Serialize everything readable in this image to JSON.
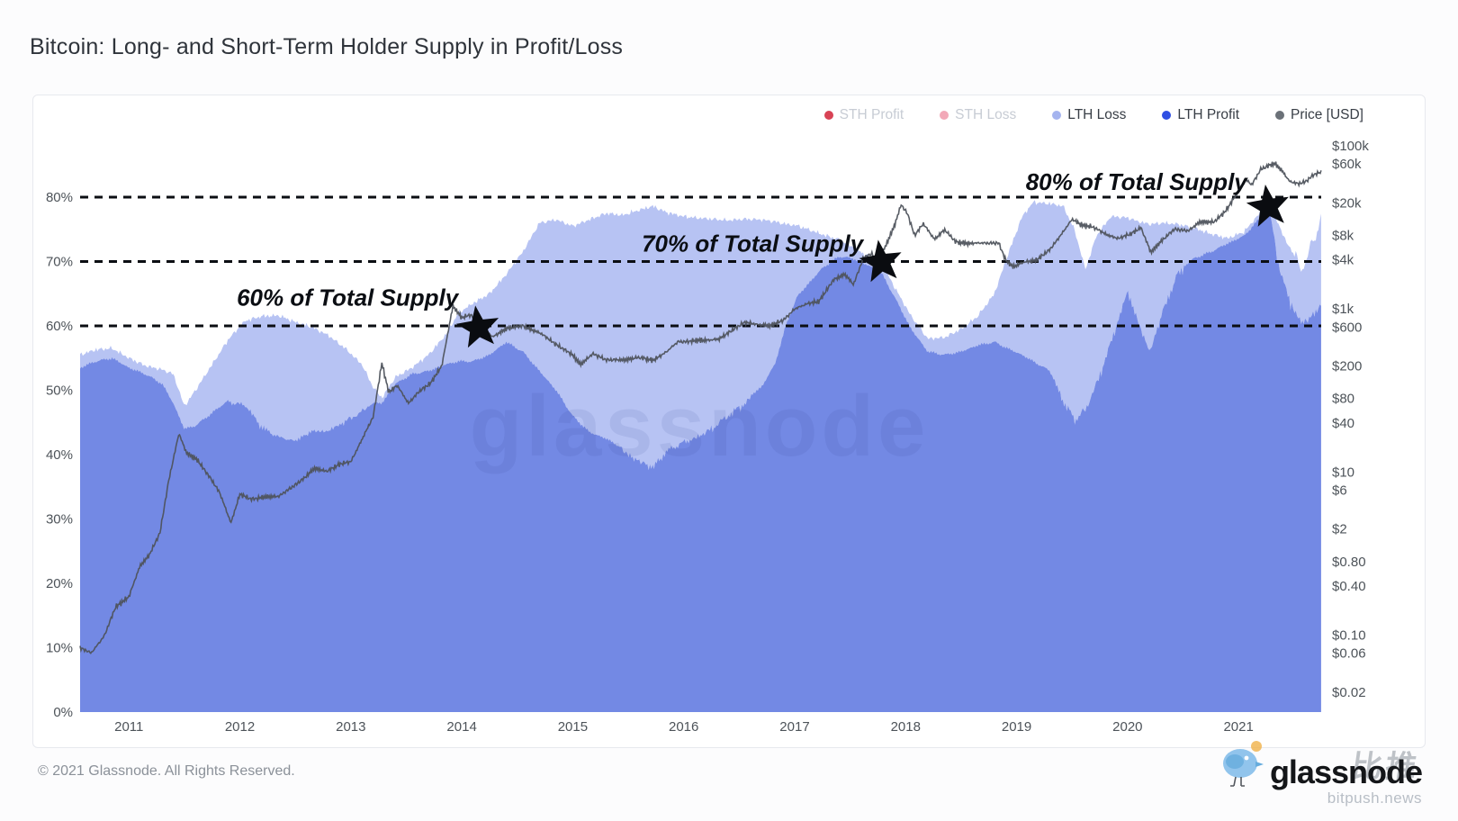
{
  "title": "Bitcoin: Long- and Short-Term Holder Supply in Profit/Loss",
  "legend": [
    {
      "label": "STH Profit",
      "color": "#d84355",
      "faded": true
    },
    {
      "label": "STH Loss",
      "color": "#f2a9b8",
      "faded": true
    },
    {
      "label": "LTH Loss",
      "color": "#a5b4ef",
      "faded": false
    },
    {
      "label": "LTH Profit",
      "color": "#2f4fe3",
      "faded": false
    },
    {
      "label": "Price [USD]",
      "color": "#6b7178",
      "faded": false
    }
  ],
  "watermark": "glassnode",
  "footer": {
    "copyright": "© 2021 Glassnode. All Rights Reserved.",
    "brand": "glassnode",
    "watermark_small": "bitpush.news",
    "watermark_cjk": "比推"
  },
  "colors": {
    "lth_profit_fill": "#7389e4",
    "lth_loss_fill": "#b7c3f3",
    "price_line": "#4e535c",
    "dashed_line": "#0b0e13",
    "axis_text": "#4d5359",
    "annotation_text": "#0b0e13",
    "watermark_fill": "#2a3a8c"
  },
  "axes": {
    "left_ticks_pct": [
      0,
      10,
      20,
      30,
      40,
      50,
      60,
      70,
      80
    ],
    "right_ticks": [
      {
        "label": "$100k",
        "value": 100000
      },
      {
        "label": "$60k",
        "value": 60000
      },
      {
        "label": "$20k",
        "value": 20000
      },
      {
        "label": "$8k",
        "value": 8000
      },
      {
        "label": "$4k",
        "value": 4000
      },
      {
        "label": "$1k",
        "value": 1000
      },
      {
        "label": "$600",
        "value": 600
      },
      {
        "label": "$200",
        "value": 200
      },
      {
        "label": "$80",
        "value": 80
      },
      {
        "label": "$40",
        "value": 40
      },
      {
        "label": "$10",
        "value": 10
      },
      {
        "label": "$6",
        "value": 6
      },
      {
        "label": "$2",
        "value": 2
      },
      {
        "label": "$0.80",
        "value": 0.8
      },
      {
        "label": "$0.40",
        "value": 0.4
      },
      {
        "label": "$0.10",
        "value": 0.1
      },
      {
        "label": "$0.06",
        "value": 0.06
      },
      {
        "label": "$0.02",
        "value": 0.02
      }
    ],
    "x_ticks": [
      2011,
      2012,
      2013,
      2014,
      2015,
      2016,
      2017,
      2018,
      2019,
      2020,
      2021
    ]
  },
  "annotations": [
    {
      "label": "60% of Total Supply",
      "line_pct": 60,
      "star_year": 2014.15,
      "star_pct": 59.7,
      "text_year": 2012.97,
      "text_pct": 64.4
    },
    {
      "label": "70% of Total Supply",
      "line_pct": 70,
      "star_year": 2017.78,
      "star_pct": 69.9,
      "text_year": 2016.62,
      "text_pct": 72.8
    },
    {
      "label": "80% of Total Supply",
      "line_pct": 80,
      "star_year": 2021.27,
      "star_pct": 78.5,
      "text_year": 2020.08,
      "text_pct": 82.4
    }
  ],
  "chart_data": {
    "type": "area",
    "stacked": true,
    "x_unit": "decimal_year",
    "x_domain": [
      2010.56,
      2021.745
    ],
    "pct_ylim": [
      0,
      90
    ],
    "price_scale": "log",
    "price_ylim": [
      0.02,
      100000
    ],
    "legend_position": "top-right",
    "grid": "dashed-annotation-lines-only",
    "x": [
      2010.56,
      2010.7,
      2010.85,
      2011.0,
      2011.15,
      2011.3,
      2011.4,
      2011.5,
      2011.6,
      2011.75,
      2011.9,
      2012.05,
      2012.2,
      2012.35,
      2012.5,
      2012.65,
      2012.8,
      2012.95,
      2013.1,
      2013.2,
      2013.28,
      2013.4,
      2013.55,
      2013.7,
      2013.85,
      2013.97,
      2014.1,
      2014.25,
      2014.4,
      2014.55,
      2014.7,
      2014.85,
      2015.0,
      2015.15,
      2015.3,
      2015.45,
      2015.6,
      2015.72,
      2015.85,
      2016.0,
      2016.1,
      2016.25,
      2016.4,
      2016.55,
      2016.7,
      2016.82,
      2016.92,
      2017.02,
      2017.12,
      2017.25,
      2017.4,
      2017.52,
      2017.65,
      2017.78,
      2017.9,
      2018.05,
      2018.2,
      2018.35,
      2018.5,
      2018.65,
      2018.8,
      2018.92,
      2019.05,
      2019.15,
      2019.3,
      2019.42,
      2019.52,
      2019.62,
      2019.72,
      2019.85,
      2020.0,
      2020.1,
      2020.2,
      2020.32,
      2020.45,
      2020.6,
      2020.75,
      2020.9,
      2021.05,
      2021.18,
      2021.28,
      2021.38,
      2021.5,
      2021.57,
      2021.65,
      2021.745
    ],
    "series": [
      {
        "name": "LTH Profit",
        "values": [
          53.5,
          54.5,
          55.0,
          53.5,
          52.5,
          51.0,
          48.0,
          44.0,
          44.5,
          46.5,
          48.5,
          48.0,
          44.5,
          43.0,
          42.5,
          44.0,
          44.0,
          45.5,
          47.0,
          48.0,
          48.0,
          51.0,
          52.5,
          53.0,
          54.0,
          54.5,
          54.5,
          55.5,
          57.5,
          56.0,
          53.0,
          50.0,
          46.0,
          43.5,
          42.5,
          41.0,
          39.5,
          38.5,
          41.0,
          42.5,
          43.0,
          44.5,
          46.5,
          48.5,
          50.5,
          54.0,
          60.0,
          64.5,
          66.5,
          69.0,
          70.8,
          70.5,
          69.5,
          68.3,
          64.5,
          59.5,
          56.0,
          55.5,
          56.0,
          57.0,
          57.5,
          56.5,
          55.5,
          54.5,
          53.0,
          49.0,
          46.0,
          47.5,
          51.5,
          58.0,
          66.0,
          61.0,
          56.5,
          63.0,
          68.5,
          70.5,
          71.5,
          72.8,
          74.0,
          76.5,
          77.8,
          68.5,
          63.0,
          61.0,
          62.0,
          64.0
        ]
      },
      {
        "name": "LTH Loss",
        "values": [
          2.0,
          1.8,
          1.5,
          1.5,
          1.3,
          2.2,
          4.5,
          3.5,
          5.5,
          7.5,
          9.5,
          12.8,
          17.0,
          18.6,
          18.1,
          15.8,
          14.5,
          11.0,
          7.0,
          2.5,
          0.8,
          1.0,
          1.0,
          2.5,
          4.5,
          7.5,
          9.0,
          9.5,
          10.5,
          15.5,
          23.0,
          26.5,
          29.5,
          33.0,
          35.0,
          36.2,
          38.5,
          40.1,
          36.6,
          34.5,
          33.8,
          32.1,
          29.9,
          28.1,
          26.0,
          22.2,
          15.8,
          11.1,
          8.5,
          5.2,
          2.6,
          1.8,
          1.4,
          1.6,
          1.5,
          2.0,
          2.0,
          2.7,
          3.5,
          4.5,
          7.5,
          14.5,
          21.5,
          24.7,
          26.0,
          29.6,
          29.0,
          21.3,
          22.5,
          19.0,
          10.8,
          15.2,
          19.3,
          13.0,
          7.3,
          4.7,
          2.8,
          0.8,
          0.6,
          0.8,
          0.8,
          6.5,
          7.5,
          6.6,
          9.5,
          11.5
        ]
      }
    ],
    "price_series": {
      "name": "Price [USD]",
      "x": [
        2010.56,
        2010.66,
        2010.78,
        2010.88,
        2011.0,
        2011.1,
        2011.18,
        2011.28,
        2011.36,
        2011.45,
        2011.52,
        2011.62,
        2011.72,
        2011.82,
        2011.92,
        2012.0,
        2012.1,
        2012.22,
        2012.35,
        2012.48,
        2012.6,
        2012.67,
        2012.78,
        2012.9,
        2013.0,
        2013.1,
        2013.2,
        2013.28,
        2013.34,
        2013.42,
        2013.52,
        2013.62,
        2013.72,
        2013.82,
        2013.92,
        2014.0,
        2014.08,
        2014.18,
        2014.28,
        2014.4,
        2014.55,
        2014.7,
        2014.85,
        2015.0,
        2015.07,
        2015.18,
        2015.3,
        2015.45,
        2015.58,
        2015.72,
        2015.85,
        2015.95,
        2016.05,
        2016.18,
        2016.32,
        2016.45,
        2016.55,
        2016.65,
        2016.78,
        2016.9,
        2017.0,
        2017.12,
        2017.22,
        2017.35,
        2017.45,
        2017.53,
        2017.62,
        2017.7,
        2017.74,
        2017.82,
        2017.9,
        2017.96,
        2018.02,
        2018.08,
        2018.16,
        2018.26,
        2018.35,
        2018.45,
        2018.58,
        2018.7,
        2018.84,
        2018.9,
        2018.97,
        2019.06,
        2019.18,
        2019.3,
        2019.4,
        2019.5,
        2019.58,
        2019.68,
        2019.8,
        2019.92,
        2020.02,
        2020.12,
        2020.21,
        2020.3,
        2020.42,
        2020.55,
        2020.65,
        2020.78,
        2020.88,
        2020.96,
        2021.02,
        2021.07,
        2021.12,
        2021.2,
        2021.28,
        2021.33,
        2021.4,
        2021.46,
        2021.54,
        2021.6,
        2021.68,
        2021.745
      ],
      "values": [
        0.07,
        0.06,
        0.1,
        0.22,
        0.3,
        0.7,
        0.95,
        1.8,
        8,
        30,
        17,
        14,
        9,
        5.5,
        2.4,
        5.3,
        4.7,
        4.9,
        5.1,
        6.6,
        9,
        11,
        10.3,
        12.4,
        13.5,
        25,
        47,
        220,
        95,
        115,
        70,
        98,
        125,
        200,
        1100,
        780,
        840,
        600,
        450,
        580,
        620,
        510,
        370,
        270,
        210,
        280,
        240,
        235,
        255,
        235,
        300,
        400,
        400,
        415,
        425,
        570,
        680,
        655,
        615,
        740,
        990,
        1180,
        1230,
        2300,
        2650,
        2000,
        4300,
        4700,
        3400,
        6000,
        10500,
        19000,
        14500,
        8000,
        11000,
        7200,
        9300,
        6700,
        6300,
        6500,
        6350,
        4000,
        3300,
        3700,
        4000,
        5300,
        8200,
        12500,
        10800,
        10200,
        8300,
        7300,
        8200,
        10000,
        4900,
        6800,
        9400,
        9200,
        11500,
        11800,
        15500,
        23000,
        32000,
        38000,
        33000,
        52000,
        58000,
        60000,
        48000,
        37000,
        34000,
        36000,
        45000,
        47500
      ]
    },
    "texture": {
      "profit_spike_regions": [
        [
          2011.9,
          2013.15,
          1.3
        ],
        [
          2015.45,
          2016.6,
          2.0
        ],
        [
          2019.35,
          2020.5,
          2.4
        ],
        [
          2021.33,
          2021.75,
          2.6
        ]
      ],
      "total_spike_regions": [
        [
          2021.45,
          2021.75,
          2.2
        ]
      ],
      "base_jitter_pct": 0.3,
      "price_jitter_log": 0.022
    },
    "title": "Bitcoin: Long- and Short-Term Holder Supply in Profit/Loss"
  }
}
